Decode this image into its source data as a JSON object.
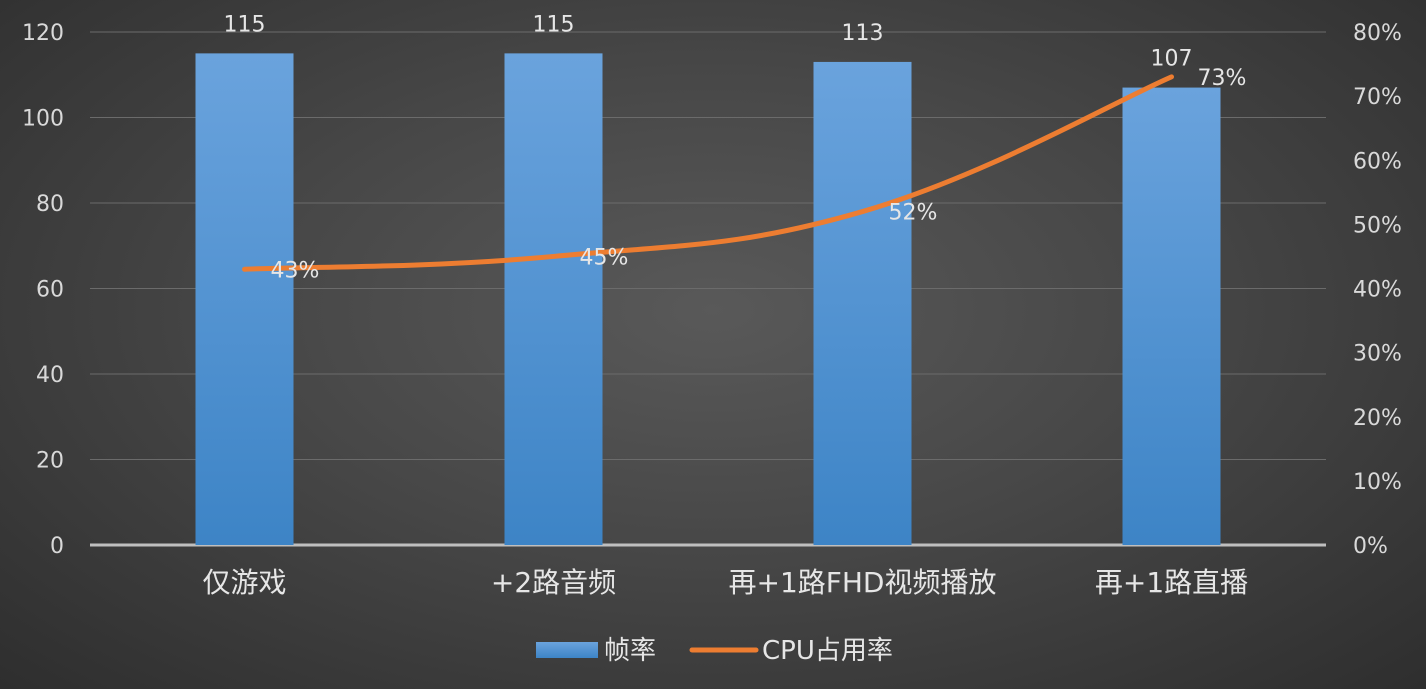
{
  "chart_data": {
    "type": "bar",
    "categories": [
      "仅游戏",
      "+2路音频",
      "再+1路FHD视频播放",
      "再+1路直播"
    ],
    "series": [
      {
        "name": "帧率",
        "type": "bar",
        "axis": "left",
        "values": [
          115,
          115,
          113,
          107
        ],
        "color": "#5b9bd5"
      },
      {
        "name": "CPU占用率",
        "type": "line",
        "axis": "right",
        "values": [
          43,
          45,
          52,
          73
        ],
        "unit": "%",
        "color": "#ed7d31"
      }
    ],
    "y_left": {
      "min": 0,
      "max": 120,
      "step": 20,
      "ticks": [
        "0",
        "20",
        "40",
        "60",
        "80",
        "100",
        "120"
      ]
    },
    "y_right": {
      "min": 0,
      "max": 80,
      "step": 10,
      "ticks": [
        "0%",
        "10%",
        "20%",
        "30%",
        "40%",
        "50%",
        "60%",
        "70%",
        "80%"
      ]
    },
    "bar_labels": [
      "115",
      "115",
      "113",
      "107"
    ],
    "line_labels": [
      "43%",
      "45%",
      "52%",
      "73%"
    ],
    "grid": true,
    "legend_position": "bottom",
    "title": "",
    "xlabel": "",
    "ylabel": ""
  }
}
